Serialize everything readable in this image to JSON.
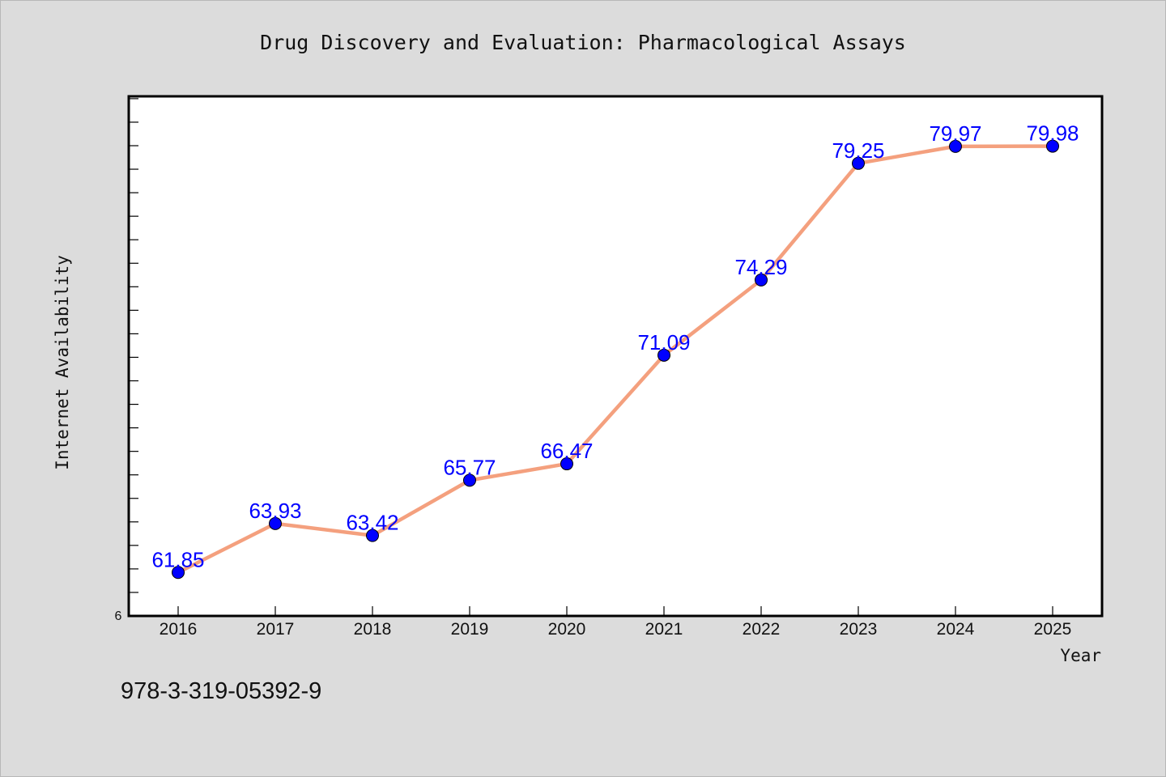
{
  "chart_data": {
    "type": "line",
    "title": "Drug Discovery and Evaluation: Pharmacological Assays",
    "xlabel": "Year",
    "ylabel": "Internet Availability",
    "categories": [
      "2016",
      "2017",
      "2018",
      "2019",
      "2020",
      "2021",
      "2022",
      "2023",
      "2024",
      "2025"
    ],
    "series": [
      {
        "values": [
          61.85,
          63.93,
          63.42,
          65.77,
          66.47,
          71.09,
          74.29,
          79.25,
          79.97,
          79.98
        ],
        "labels": [
          "61.85",
          "63.93",
          "63.42",
          "65.77",
          "66.47",
          "71.09",
          "74.29",
          "79.25",
          "79.97",
          "79.98"
        ]
      }
    ],
    "ylim": [
      60,
      82.1
    ],
    "y_tick_labels": [
      "6"
    ],
    "grid": false,
    "colors": {
      "line": "#f4a07e",
      "marker": "#0000ff",
      "label": "#0000ff",
      "plot_bg": "#ffffff",
      "figure_bg": "#dcdcdc"
    }
  },
  "footer": {
    "isbn": "978-3-319-05392-9"
  }
}
